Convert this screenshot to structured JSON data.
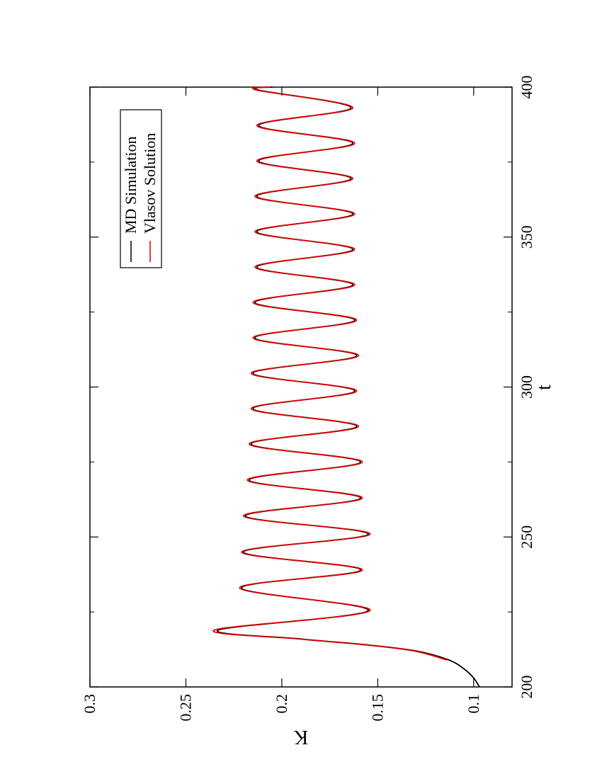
{
  "chart_data": {
    "type": "line",
    "xlabel": "t",
    "ylabel": "K",
    "x": [
      200,
      203,
      206,
      209,
      212,
      214,
      216,
      219,
      225.5,
      233,
      239,
      245,
      251,
      257,
      263,
      269,
      275,
      281,
      286.9,
      292.8,
      298.7,
      304.6,
      310.5,
      316.4,
      322.3,
      328.2,
      334.1,
      340,
      345.9,
      351.8,
      357.7,
      363.6,
      369.5,
      375.4,
      381.3,
      387.2,
      393.1,
      399,
      400
    ],
    "series": [
      {
        "name": "MD Simulation",
        "color": "#000000",
        "values": [
          0.097,
          0.1,
          0.105,
          0.113,
          0.13,
          0.155,
          0.19,
          0.233,
          0.155,
          0.221,
          0.159,
          0.22,
          0.155,
          0.219,
          0.159,
          0.217,
          0.159,
          0.216,
          0.161,
          0.215,
          0.162,
          0.215,
          0.161,
          0.214,
          0.162,
          0.214,
          0.163,
          0.213,
          0.163,
          0.213,
          0.163,
          0.213,
          0.164,
          0.212,
          0.163,
          0.212,
          0.164,
          0.212,
          0.205
        ]
      },
      {
        "name": "Vlasov Solution",
        "color": "#dd0000",
        "values": [
          null,
          null,
          null,
          0.114,
          0.131,
          0.156,
          0.191,
          0.235,
          0.154,
          0.222,
          0.158,
          0.221,
          0.154,
          0.22,
          0.158,
          0.218,
          0.158,
          0.217,
          0.16,
          0.216,
          0.161,
          0.216,
          0.16,
          0.215,
          0.161,
          0.215,
          0.162,
          0.214,
          0.162,
          0.214,
          0.162,
          0.214,
          0.163,
          0.213,
          0.162,
          0.213,
          0.163,
          0.213,
          0.206
        ]
      }
    ],
    "xlim": [
      200,
      400
    ],
    "xticks": [
      200,
      250,
      300,
      350,
      400
    ],
    "xminor": [
      225,
      275,
      325,
      375
    ],
    "ylim": [
      0.08,
      0.3
    ],
    "yticks": [
      0.1,
      0.15,
      0.2,
      0.25,
      0.3
    ],
    "legend": "upper right"
  }
}
